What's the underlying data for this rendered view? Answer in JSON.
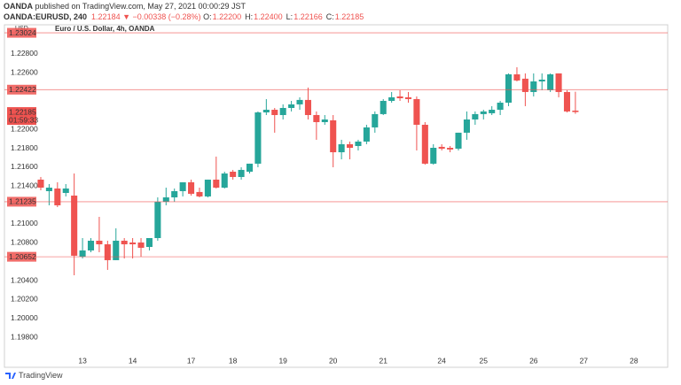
{
  "header": {
    "publisher": "OANDA",
    "published": "published on TradingView.com, May 27, 2021 00:00:29 JST",
    "symbol": "OANDA:EURUSD, 240",
    "last": "1.22184 ▼ −0.00338 (−0.28%)",
    "ohlc": [
      {
        "label": "O:",
        "value": "1.22200"
      },
      {
        "label": "H:",
        "value": "1.22400"
      },
      {
        "label": "L:",
        "value": "1.22166"
      },
      {
        "label": "C:",
        "value": "1.22185"
      }
    ]
  },
  "footer": {
    "logo": "TradingView"
  },
  "chart_data": {
    "type": "candlestick",
    "title": "Euro / U.S. Dollar, 4h, OANDA",
    "y_unit": "USD",
    "up_color": "#26a69a",
    "down_color": "#ef5350",
    "level_color": "#ef5350",
    "grid": false,
    "x": [
      0,
      1,
      2,
      3,
      4,
      5,
      6,
      7,
      8,
      9,
      10,
      11,
      12,
      13,
      14,
      15,
      16,
      17,
      18,
      19,
      20,
      21,
      22,
      23,
      24,
      25,
      26,
      27,
      28,
      29,
      30,
      31,
      32,
      33,
      34,
      35,
      36,
      37,
      38,
      39,
      40,
      41,
      42,
      43,
      44,
      45,
      46,
      47,
      48,
      49,
      50,
      51,
      52,
      53,
      54,
      55,
      56,
      57,
      58,
      59,
      60,
      61,
      62,
      63,
      64
    ],
    "open": [
      1.21469,
      1.21347,
      1.21375,
      1.21328,
      1.213,
      1.20653,
      1.20719,
      1.20822,
      1.20784,
      1.20616,
      1.20822,
      1.20803,
      1.20803,
      1.20756,
      1.2085,
      1.21234,
      1.21281,
      1.21347,
      1.21441,
      1.21338,
      1.21291,
      1.21469,
      1.21384,
      1.21553,
      1.21497,
      1.21553,
      1.21638,
      1.22181,
      1.22209,
      1.22153,
      1.22228,
      1.22266,
      1.22313,
      1.22153,
      1.22078,
      1.22097,
      1.21759,
      1.21844,
      1.21825,
      1.21872,
      1.22022,
      1.22163,
      1.22303,
      1.2235,
      1.22341,
      1.22322,
      1.2205,
      1.21638,
      1.21816,
      1.21806,
      1.21797,
      1.21966,
      1.22106,
      1.22163,
      1.22172,
      1.22209,
      1.22284,
      1.22584,
      1.22538,
      1.22397,
      1.22509,
      1.22416,
      1.22594,
      1.22397,
      1.222
    ],
    "high": [
      1.21497,
      1.21422,
      1.21441,
      1.21422,
      1.21534,
      1.2085,
      1.2085,
      1.21075,
      1.20822,
      1.20953,
      1.2085,
      1.2085,
      1.2085,
      1.2085,
      1.21281,
      1.21384,
      1.21375,
      1.21441,
      1.21469,
      1.21384,
      1.21469,
      1.21713,
      1.21553,
      1.21572,
      1.216,
      1.21638,
      1.22191,
      1.22322,
      1.22228,
      1.22266,
      1.22303,
      1.22341,
      1.22444,
      1.22191,
      1.22153,
      1.22153,
      1.21891,
      1.21872,
      1.21891,
      1.2205,
      1.22191,
      1.22322,
      1.22397,
      1.22416,
      1.22397,
      1.2235,
      1.22078,
      1.21844,
      1.21844,
      1.21825,
      1.21966,
      1.22191,
      1.22191,
      1.22209,
      1.22247,
      1.22303,
      1.22594,
      1.22659,
      1.22594,
      1.22594,
      1.22594,
      1.22594,
      1.22594,
      1.22416,
      1.224
    ],
    "low": [
      1.21356,
      1.21197,
      1.21178,
      1.21291,
      1.20456,
      1.20634,
      1.207,
      1.207,
      1.20513,
      1.20616,
      1.20634,
      1.20634,
      1.20653,
      1.20719,
      1.20822,
      1.21197,
      1.21234,
      1.21291,
      1.213,
      1.21281,
      1.21281,
      1.21375,
      1.21375,
      1.21469,
      1.21469,
      1.21534,
      1.216,
      1.22153,
      1.21966,
      1.22106,
      1.22191,
      1.22209,
      1.22106,
      1.21891,
      1.2205,
      1.216,
      1.21684,
      1.21684,
      1.21778,
      1.21844,
      1.21966,
      1.22153,
      1.22284,
      1.22303,
      1.22284,
      1.21778,
      1.21628,
      1.21628,
      1.21778,
      1.21759,
      1.21778,
      1.21891,
      1.2205,
      1.22106,
      1.22153,
      1.22153,
      1.22247,
      1.22509,
      1.22247,
      1.2235,
      1.22416,
      1.22397,
      1.22341,
      1.22181,
      1.22166
    ],
    "close": [
      1.21384,
      1.21384,
      1.21197,
      1.21375,
      1.20663,
      1.20719,
      1.20822,
      1.20784,
      1.20616,
      1.20822,
      1.20784,
      1.20784,
      1.20747,
      1.2085,
      1.21234,
      1.21281,
      1.21347,
      1.21441,
      1.21319,
      1.21291,
      1.21469,
      1.21384,
      1.21534,
      1.21497,
      1.21572,
      1.21638,
      1.22181,
      1.22209,
      1.22153,
      1.22228,
      1.22266,
      1.22313,
      1.22153,
      1.22078,
      1.22106,
      1.21759,
      1.21844,
      1.21806,
      1.21872,
      1.22022,
      1.22163,
      1.22303,
      1.22341,
      1.22331,
      1.22322,
      1.2205,
      1.21638,
      1.21806,
      1.21797,
      1.21788,
      1.21966,
      1.22106,
      1.22163,
      1.22191,
      1.22209,
      1.22284,
      1.22584,
      1.22519,
      1.22397,
      1.22509,
      1.22528,
      1.22584,
      1.22397,
      1.22191,
      1.22185
    ],
    "xlim": [
      -4.35,
      75.05
    ],
    "xticks": [
      {
        "value": 5,
        "label": "13"
      },
      {
        "value": 11,
        "label": "14"
      },
      {
        "value": 18,
        "label": "17"
      },
      {
        "value": 23,
        "label": "18"
      },
      {
        "value": 29,
        "label": "19"
      },
      {
        "value": 35,
        "label": "20"
      },
      {
        "value": 41,
        "label": "21"
      },
      {
        "value": 48,
        "label": "24"
      },
      {
        "value": 53,
        "label": "25"
      },
      {
        "value": 59,
        "label": "26"
      },
      {
        "value": 65,
        "label": "27"
      },
      {
        "value": 71,
        "label": "28"
      }
    ],
    "ylim": [
      1.19622,
      1.23109
    ],
    "yticks": [
      {
        "value": 1.198,
        "label": "1.19800"
      },
      {
        "value": 1.2,
        "label": "1.20000"
      },
      {
        "value": 1.202,
        "label": "1.20200"
      },
      {
        "value": 1.204,
        "label": "1.20400"
      },
      {
        "value": 1.208,
        "label": "1.20800"
      },
      {
        "value": 1.21,
        "label": "1.21000"
      },
      {
        "value": 1.214,
        "label": "1.21400"
      },
      {
        "value": 1.216,
        "label": "1.21600"
      },
      {
        "value": 1.218,
        "label": "1.21800"
      },
      {
        "value": 1.22,
        "label": "1.22000"
      },
      {
        "value": 1.226,
        "label": "1.22600"
      },
      {
        "value": 1.228,
        "label": "1.22800"
      }
    ],
    "levels": [
      1.23024,
      1.22422,
      1.21235,
      1.20652
    ],
    "last_price": 1.22185,
    "countdown": "01:59:33"
  }
}
